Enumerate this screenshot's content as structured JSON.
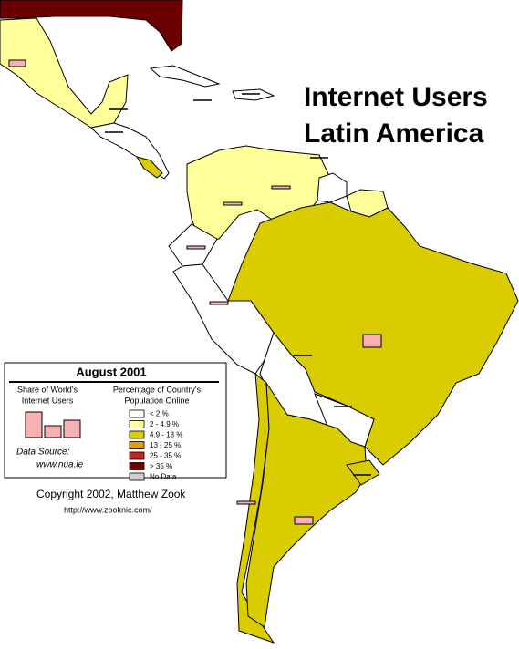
{
  "title": {
    "line1": "Internet Users",
    "line2": "Latin America"
  },
  "legend": {
    "heading": "August 2001",
    "share_label": [
      "Share of World's",
      "Internet Users"
    ],
    "percent_label": [
      "Percentage of Country's",
      "Population Online"
    ],
    "entries": [
      {
        "label": "< 2 %",
        "color": "#ffffff"
      },
      {
        "label": "2 - 4.9 %",
        "color": "#ffff99"
      },
      {
        "label": "4.9 - 13 %",
        "color": "#d9cc00"
      },
      {
        "label": "13 - 25 %",
        "color": "#e89c00"
      },
      {
        "label": "25 - 35 %",
        "color": "#cc2222"
      },
      {
        "label": "> 35 %",
        "color": "#6b0000"
      },
      {
        "label": "No Data",
        "color": "#d0d0d0"
      }
    ],
    "source_label": "Data Source:",
    "source_url": "www.nua.ie"
  },
  "credits": {
    "copyright": "Copyright 2002, Matthew Zook",
    "url": "http://www.zooknic.com/"
  }
}
